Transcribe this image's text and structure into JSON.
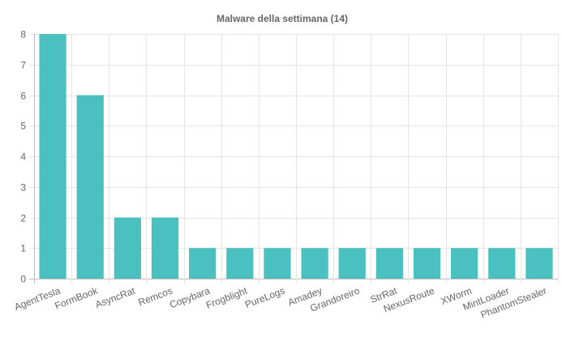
{
  "chart_data": {
    "type": "bar",
    "title": "Malware della settimana (14)",
    "xlabel": "",
    "ylabel": "",
    "categories": [
      "AgentTesla",
      "FormBook",
      "AsyncRat",
      "Remcos",
      "Copybara",
      "Frogblight",
      "PureLogs",
      "Amadey",
      "Grandoreiro",
      "StrRat",
      "NexusRoute",
      "XWorm",
      "MintLoader",
      "PhantomStealer"
    ],
    "values": [
      8,
      6,
      2,
      2,
      1,
      1,
      1,
      1,
      1,
      1,
      1,
      1,
      1,
      1
    ],
    "ylim": [
      0,
      8
    ],
    "y_ticks": [
      "0",
      "1",
      "2",
      "3",
      "4",
      "5",
      "6",
      "7",
      "8"
    ],
    "grid": true,
    "legend": "none",
    "bar_color": "#4bc0c0",
    "grid_color": "#e5e5e5",
    "text_color": "#666666"
  }
}
